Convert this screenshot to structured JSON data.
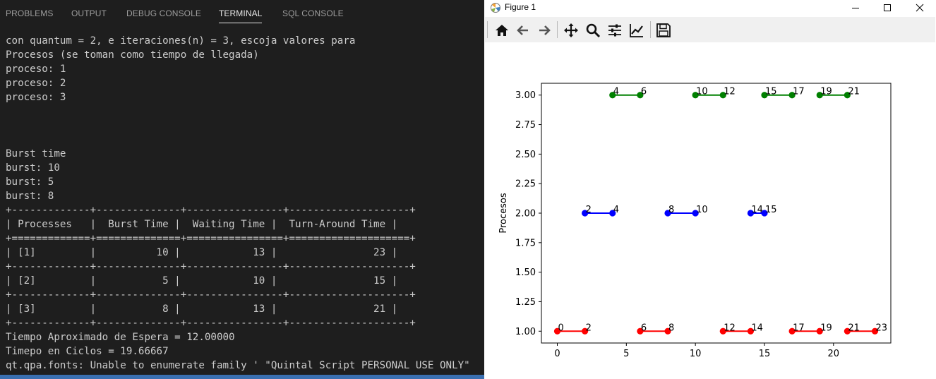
{
  "panel": {
    "tabs": [
      "PROBLEMS",
      "OUTPUT",
      "DEBUG CONSOLE",
      "TERMINAL",
      "SQL CONSOLE"
    ],
    "active_tab": "TERMINAL",
    "terminal_lines": [
      "con quantum = 2, e iteraciones(n) = 3, escoja valores para",
      "Procesos (se toman como tiempo de llegada)",
      "proceso: 1",
      "proceso: 2",
      "proceso: 3",
      "",
      "",
      "",
      "Burst time",
      "burst: 10",
      "burst: 5",
      "burst: 8",
      "+-------------+--------------+----------------+--------------------+",
      "| Processes   |  Burst Time |  Waiting Time |  Turn-Around Time |",
      "+=============+==============+================+====================+",
      "| [1]         |          10 |            13 |                23 |",
      "+-------------+--------------+----------------+--------------------+",
      "| [2]         |           5 |            10 |                15 |",
      "+-------------+--------------+----------------+--------------------+",
      "| [3]         |           8 |            13 |                21 |",
      "+-------------+--------------+----------------+--------------------+",
      "Tiempo Aproximado de Espera = 12.00000",
      "Timepo en Ciclos = 19.66667",
      "qt.qpa.fonts: Unable to enumerate family ' \"Quintal Script PERSONAL USE ONLY\""
    ]
  },
  "figure": {
    "window_title": "Figure 1",
    "toolbar_icons": [
      "home-icon",
      "back-arrow-icon",
      "forward-arrow-icon",
      "pan-icon",
      "zoom-icon",
      "subplots-config-icon",
      "edit-axis-icon",
      "save-icon"
    ],
    "colors": {
      "p1": "#ff0000",
      "p2": "#0000ff",
      "p3": "#008000"
    }
  },
  "chart_data": {
    "type": "line",
    "title": "",
    "xlabel": "",
    "ylabel": "Procesos",
    "xlim": [
      -1.15,
      24.15
    ],
    "ylim": [
      0.9,
      3.1
    ],
    "xticks": [
      "0",
      "5",
      "10",
      "15",
      "20"
    ],
    "xtick_values": [
      0,
      5,
      10,
      15,
      20
    ],
    "yticks": [
      "1.00",
      "1.25",
      "1.50",
      "1.75",
      "2.00",
      "2.25",
      "2.50",
      "2.75",
      "3.00"
    ],
    "ytick_values": [
      1.0,
      1.25,
      1.5,
      1.75,
      2.0,
      2.25,
      2.5,
      2.75,
      3.0
    ],
    "grid": false,
    "series": [
      {
        "process": 1,
        "color": "#ff0000",
        "segments": [
          [
            0,
            2
          ],
          [
            6,
            8
          ],
          [
            12,
            14
          ],
          [
            17,
            19
          ],
          [
            21,
            23
          ]
        ]
      },
      {
        "process": 2,
        "color": "#0000ff",
        "segments": [
          [
            2,
            4
          ],
          [
            8,
            10
          ],
          [
            14,
            15
          ]
        ]
      },
      {
        "process": 3,
        "color": "#008000",
        "segments": [
          [
            4,
            6
          ],
          [
            10,
            12
          ],
          [
            15,
            17
          ],
          [
            19,
            21
          ]
        ]
      }
    ]
  }
}
